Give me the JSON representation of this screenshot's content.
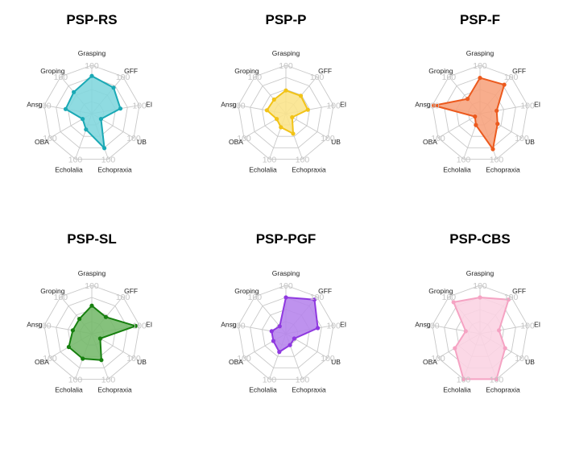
{
  "chart_data": [
    {
      "type": "radar",
      "title": "PSP-RS",
      "color": "#1aa9b5",
      "fill": "#7fd6dd",
      "axes": [
        "Grasping",
        "GFF",
        "EI",
        "UB",
        "Echopraxia",
        "Echolalia",
        "OBA",
        "Ansg",
        "Groping"
      ],
      "tick_label": "100",
      "range": [
        0,
        100
      ],
      "values": [
        78,
        70,
        60,
        22,
        76,
        35,
        22,
        55,
        58
      ]
    },
    {
      "type": "radar",
      "title": "PSP-P",
      "color": "#f2c317",
      "fill": "#fbe48a",
      "axes": [
        "Grasping",
        "GFF",
        "EI",
        "UB",
        "Echopraxia",
        "Echolalia",
        "OBA",
        "Ansg",
        "Groping"
      ],
      "tick_label": "100",
      "range": [
        0,
        100
      ],
      "values": [
        48,
        48,
        46,
        15,
        44,
        30,
        22,
        40,
        38
      ]
    },
    {
      "type": "radar",
      "title": "PSP-F",
      "color": "#ec5a1e",
      "fill": "#f7a27c",
      "axes": [
        "Grasping",
        "GFF",
        "EI",
        "UB",
        "Echopraxia",
        "Echolalia",
        "OBA",
        "Ansg",
        "Groping"
      ],
      "tick_label": "100",
      "range": [
        0,
        100
      ],
      "values": [
        74,
        78,
        35,
        42,
        78,
        25,
        12,
        97,
        40
      ]
    },
    {
      "type": "radar",
      "title": "PSP-SL",
      "color": "#17800f",
      "fill": "#74b86a",
      "axes": [
        "Grasping",
        "GFF",
        "EI",
        "UB",
        "Echopraxia",
        "Echolalia",
        "OBA",
        "Ansg",
        "Groping"
      ],
      "tick_label": "100",
      "range": [
        0,
        100
      ],
      "values": [
        58,
        45,
        92,
        20,
        58,
        55,
        55,
        40,
        40
      ]
    },
    {
      "type": "radar",
      "title": "PSP-PGF",
      "color": "#8f38e0",
      "fill": "#b583ec",
      "axes": [
        "Grasping",
        "GFF",
        "EI",
        "UB",
        "Echopraxia",
        "Echolalia",
        "OBA",
        "Ansg",
        "Groping"
      ],
      "tick_label": "100",
      "range": [
        0,
        100
      ],
      "values": [
        75,
        92,
        67,
        20,
        25,
        40,
        30,
        30,
        20
      ]
    },
    {
      "type": "radar",
      "title": "PSP-CBS",
      "color": "#f5a3c3",
      "fill": "#fbd3e3",
      "axes": [
        "Grasping",
        "GFF",
        "EI",
        "UB",
        "Echopraxia",
        "Echolalia",
        "OBA",
        "Ansg",
        "Groping"
      ],
      "tick_label": "100",
      "range": [
        0,
        100
      ],
      "values": [
        75,
        92,
        40,
        60,
        100,
        100,
        60,
        30,
        85
      ]
    }
  ]
}
